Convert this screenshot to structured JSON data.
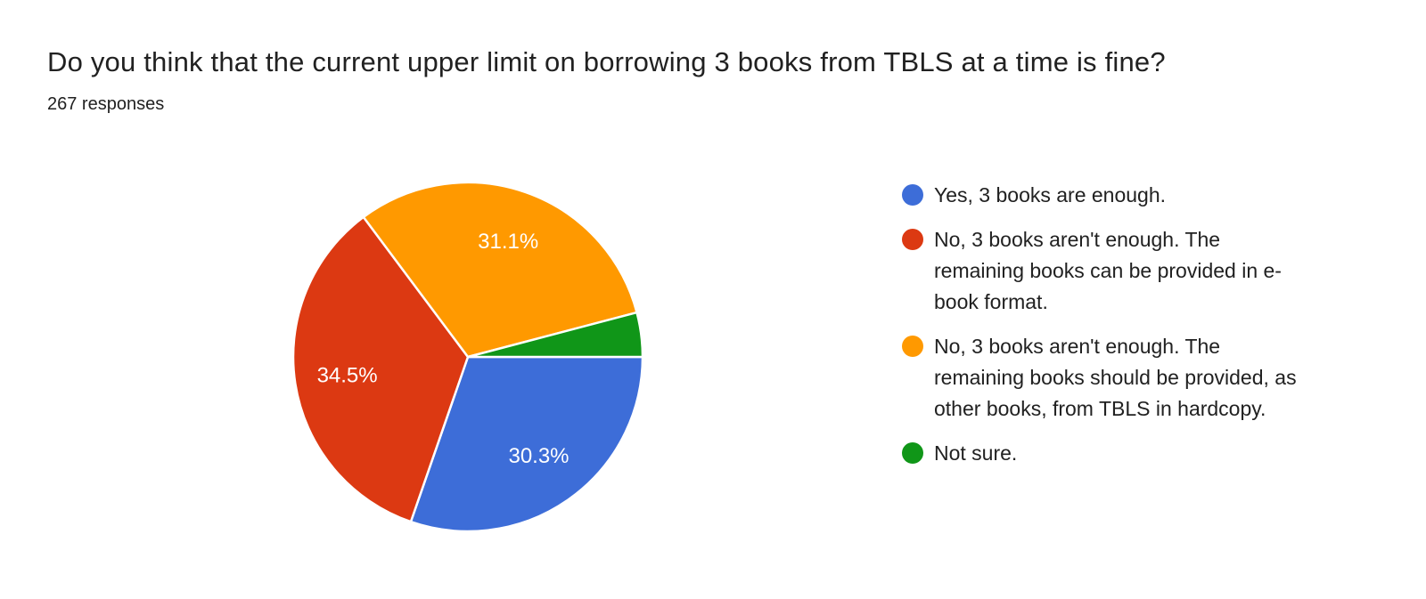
{
  "header": {
    "title": "Do you think that the current upper limit on borrowing 3 books from TBLS at a time is fine?",
    "responses": "267 responses"
  },
  "chart_data": {
    "type": "pie",
    "title": "Do you think that the current upper limit on borrowing 3 books from TBLS at a time is fine?",
    "subtitle": "267 responses",
    "total_responses": 267,
    "legend_position": "right",
    "start_angle": "east",
    "direction": "clockwise",
    "slice_separator_color": "#ffffff",
    "label_color": "#ffffff",
    "slices": [
      {
        "label": "Yes, 3 books are enough.",
        "value_pct": 30.3,
        "pct_label": "30.3%",
        "color": "#3d6dd8"
      },
      {
        "label": "No, 3 books aren't enough. The remaining books can be provided in e-book format.",
        "value_pct": 34.5,
        "pct_label": "34.5%",
        "color": "#dc3912"
      },
      {
        "label": "No, 3 books aren't enough. The remaining books should be provided, as other books, from TBLS in hardcopy.",
        "value_pct": 31.1,
        "pct_label": "31.1%",
        "color": "#ff9900"
      },
      {
        "label": "Not sure.",
        "value_pct": 4.1,
        "pct_label": null,
        "color": "#109618"
      }
    ]
  }
}
